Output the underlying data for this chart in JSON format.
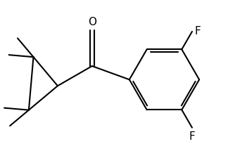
{
  "background_color": "#ffffff",
  "line_color": "#000000",
  "line_width": 1.5,
  "figsize": [
    3.24,
    2.25
  ],
  "dpi": 100,
  "O_label": "O",
  "F1_label": "F",
  "F2_label": "F",
  "font_size": 10
}
